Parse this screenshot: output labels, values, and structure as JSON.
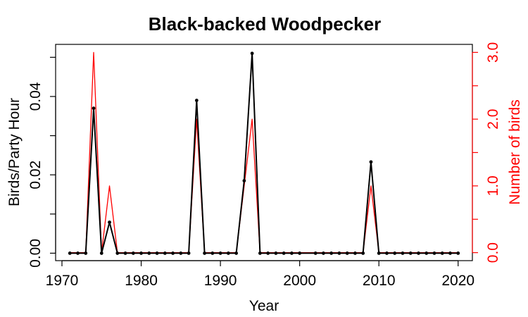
{
  "chart_data": {
    "type": "line",
    "title": "Black-backed Woodpecker",
    "xlabel": "Year",
    "ylabel_left": "Birds/Party Hour",
    "ylabel_right": "Number of birds",
    "xlim": [
      1969.2,
      2021.8
    ],
    "ylim_left": [
      -0.0019,
      0.0533
    ],
    "ylim_right": [
      -0.12,
      3.12
    ],
    "x_ticks": [
      1970,
      1980,
      1990,
      2000,
      2010,
      2020
    ],
    "x_tick_labels": [
      "1970",
      "1980",
      "1990",
      "2000",
      "2010",
      "2020"
    ],
    "y_left_ticks": [
      0.0,
      0.02,
      0.04
    ],
    "y_left_tick_labels": [
      "0.00",
      "0.02",
      "0.04"
    ],
    "y_right_ticks": [
      0,
      0.5,
      1,
      1.5,
      2,
      2.5,
      3
    ],
    "y_right_tick_labels": [
      "0.0",
      "",
      "1.0",
      "",
      "2.0",
      "",
      "3.0"
    ],
    "series": [
      {
        "axis": "left",
        "color": "#000000",
        "markers": true,
        "points": [
          [
            1971,
            0
          ],
          [
            1972,
            0
          ],
          [
            1973,
            0
          ],
          [
            1974,
            0.037
          ],
          [
            1975,
            0
          ],
          [
            1976,
            0.0079
          ],
          [
            1977,
            0
          ],
          [
            1978,
            0
          ],
          [
            1979,
            0
          ],
          [
            1980,
            0
          ],
          [
            1981,
            0
          ],
          [
            1982,
            0
          ],
          [
            1983,
            0
          ],
          [
            1984,
            0
          ],
          [
            1985,
            0
          ],
          [
            1986,
            0
          ],
          [
            1987,
            0.039
          ],
          [
            1988,
            0
          ],
          [
            1989,
            0
          ],
          [
            1990,
            0
          ],
          [
            1991,
            0
          ],
          [
            1992,
            0
          ],
          [
            1993,
            0.0185
          ],
          [
            1994,
            0.051
          ],
          [
            1995,
            0
          ],
          [
            1996,
            0
          ],
          [
            1997,
            0
          ],
          [
            1998,
            0
          ],
          [
            1999,
            0
          ],
          [
            2000,
            0
          ],
          [
            2002,
            0
          ],
          [
            2003,
            0
          ],
          [
            2004,
            0
          ],
          [
            2005,
            0
          ],
          [
            2006,
            0
          ],
          [
            2007,
            0
          ],
          [
            2008,
            0
          ],
          [
            2009,
            0.0233
          ],
          [
            2010,
            0
          ],
          [
            2011,
            0
          ],
          [
            2012,
            0
          ],
          [
            2013,
            0
          ],
          [
            2014,
            0
          ],
          [
            2015,
            0
          ],
          [
            2016,
            0
          ],
          [
            2017,
            0
          ],
          [
            2018,
            0
          ],
          [
            2019,
            0
          ],
          [
            2020,
            0
          ]
        ]
      },
      {
        "axis": "right",
        "color": "#ff0000",
        "markers": false,
        "points": [
          [
            1971,
            0
          ],
          [
            1972,
            0
          ],
          [
            1973,
            0
          ],
          [
            1974,
            3
          ],
          [
            1975,
            0
          ],
          [
            1976,
            1
          ],
          [
            1977,
            0
          ],
          [
            1978,
            0
          ],
          [
            1979,
            0
          ],
          [
            1980,
            0
          ],
          [
            1981,
            0
          ],
          [
            1982,
            0
          ],
          [
            1983,
            0
          ],
          [
            1984,
            0
          ],
          [
            1985,
            0
          ],
          [
            1986,
            0
          ],
          [
            1987,
            2
          ],
          [
            1988,
            0
          ],
          [
            1989,
            0
          ],
          [
            1990,
            0
          ],
          [
            1991,
            0
          ],
          [
            1992,
            0
          ],
          [
            1993,
            1
          ],
          [
            1994,
            2
          ],
          [
            1995,
            0
          ],
          [
            1996,
            0
          ],
          [
            1997,
            0
          ],
          [
            1998,
            0
          ],
          [
            1999,
            0
          ],
          [
            2000,
            0
          ],
          [
            2002,
            0
          ],
          [
            2003,
            0
          ],
          [
            2004,
            0
          ],
          [
            2005,
            0
          ],
          [
            2006,
            0
          ],
          [
            2007,
            0
          ],
          [
            2008,
            0
          ],
          [
            2009,
            1
          ],
          [
            2010,
            0
          ],
          [
            2011,
            0
          ],
          [
            2012,
            0
          ],
          [
            2013,
            0
          ],
          [
            2014,
            0
          ],
          [
            2015,
            0
          ],
          [
            2016,
            0
          ],
          [
            2017,
            0
          ],
          [
            2018,
            0
          ],
          [
            2019,
            0
          ],
          [
            2020,
            0
          ]
        ]
      }
    ]
  }
}
